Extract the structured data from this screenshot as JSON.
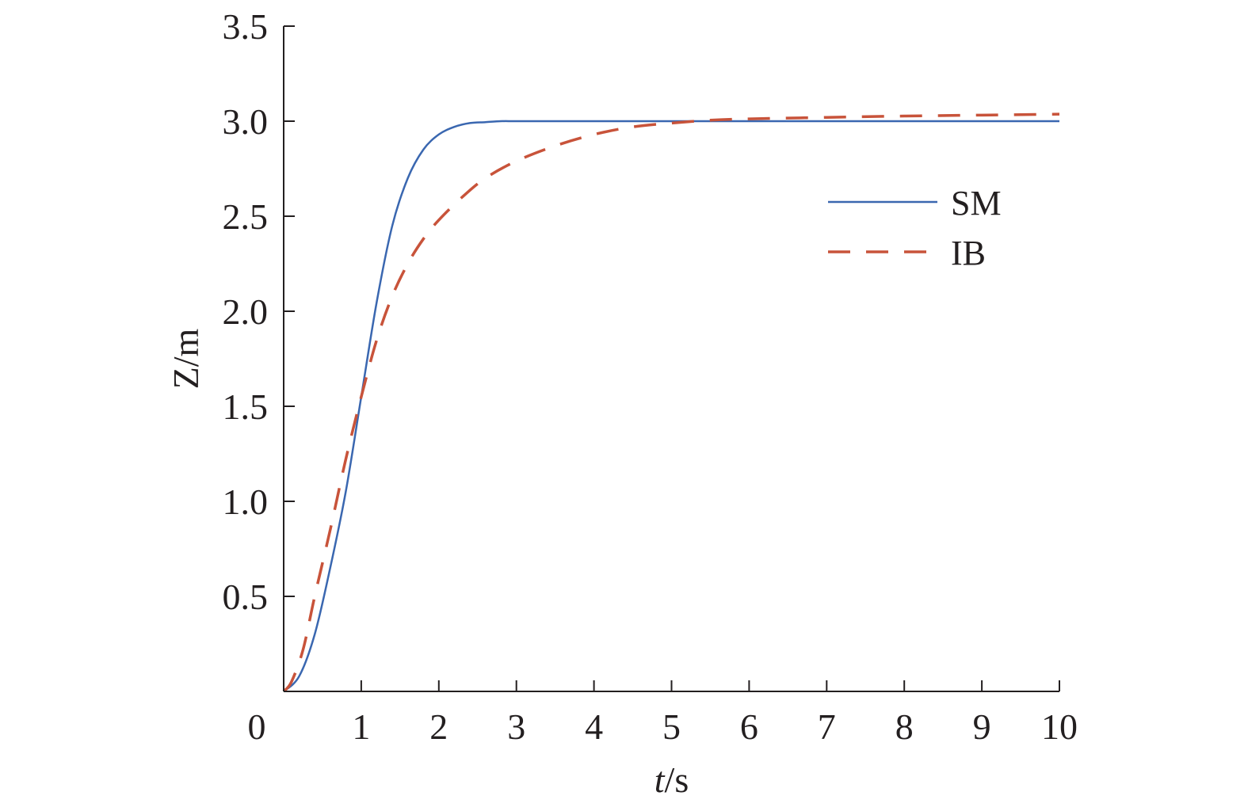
{
  "chart_data": {
    "type": "line",
    "xlabel_italic": "t",
    "xlabel_unit": "/s",
    "ylabel": "Z/m",
    "xlim": [
      0,
      10
    ],
    "ylim": [
      0,
      3.5
    ],
    "x_ticks": [
      0,
      1,
      2,
      3,
      4,
      5,
      6,
      7,
      8,
      9,
      10
    ],
    "x_tick_labels": [
      "0",
      "1",
      "2",
      "3",
      "4",
      "5",
      "6",
      "7",
      "8",
      "9",
      "10"
    ],
    "y_ticks": [
      0.5,
      1.0,
      1.5,
      2.0,
      2.5,
      3.0,
      3.5
    ],
    "y_tick_labels": [
      "0.5",
      "1.0",
      "1.5",
      "2.0",
      "2.5",
      "3.0",
      "3.5"
    ],
    "grid": false,
    "legend_position": "right",
    "series": [
      {
        "name": "SM",
        "color": "#3a67b0",
        "style": "solid",
        "x": [
          0,
          0.2,
          0.4,
          0.6,
          0.8,
          1.0,
          1.2,
          1.4,
          1.6,
          1.8,
          2.0,
          2.2,
          2.4,
          2.6,
          2.8,
          3.0,
          3.5,
          4.0,
          5.0,
          6.0,
          7.0,
          8.0,
          9.0,
          10.0
        ],
        "y": [
          0,
          0.08,
          0.3,
          0.65,
          1.05,
          1.55,
          2.05,
          2.45,
          2.7,
          2.85,
          2.93,
          2.97,
          2.99,
          2.995,
          3.0,
          3.0,
          3.0,
          3.0,
          3.0,
          3.0,
          3.0,
          3.0,
          3.0,
          3.0
        ]
      },
      {
        "name": "IB",
        "color": "#c8533a",
        "style": "dashed",
        "x": [
          0,
          0.1,
          0.25,
          0.4,
          0.6,
          0.8,
          1.0,
          1.2,
          1.4,
          1.6,
          1.8,
          2.0,
          2.3,
          2.6,
          3.0,
          3.5,
          4.0,
          4.5,
          5.0,
          5.5,
          6.0,
          7.0,
          8.0,
          9.0,
          10.0
        ],
        "y": [
          0,
          0.05,
          0.22,
          0.5,
          0.85,
          1.22,
          1.55,
          1.85,
          2.08,
          2.25,
          2.38,
          2.48,
          2.6,
          2.7,
          2.79,
          2.87,
          2.93,
          2.97,
          2.99,
          3.005,
          3.012,
          3.02,
          3.027,
          3.032,
          3.037
        ]
      }
    ]
  }
}
